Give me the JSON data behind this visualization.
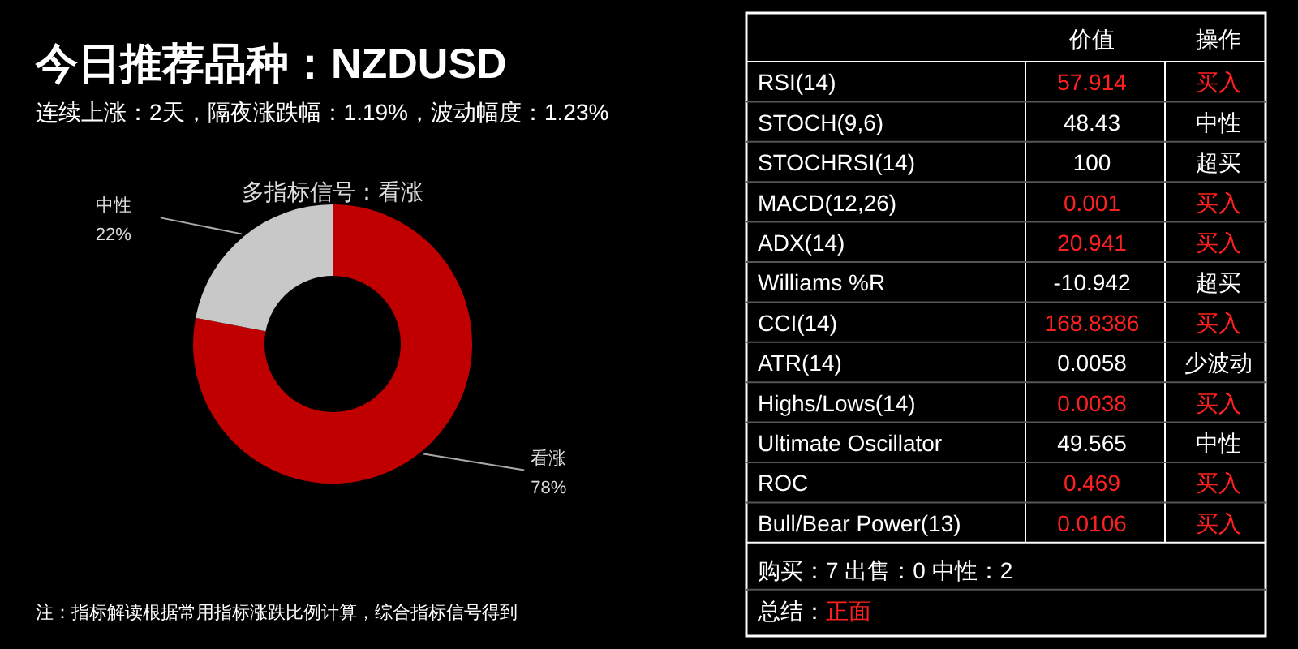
{
  "chart_data": [
    {
      "type": "donut",
      "title": "今日推荐品种：NZDUSD",
      "subtitle": "连续上涨：2天，隔夜涨跌幅：1.19%，波动幅度：1.23%",
      "categories": [
        "看涨",
        "中性"
      ],
      "values": [
        78,
        22
      ],
      "colors": [
        "#c00000",
        "#c8c8c8"
      ],
      "value_labels": [
        "78%",
        "22%"
      ],
      "annotations": [
        "多指标信号：看涨",
        "注：指标解读根据常用指标涨跌比例计算，综合指标信号得到"
      ]
    },
    {
      "type": "other",
      "categories": [
        "价值",
        "操作"
      ],
      "y_categories": [
        "RSI(14)",
        "STOCH(9,6)",
        "STOCHRSI(14)",
        "MACD(12,26)",
        "ADX(14)",
        "Williams %R",
        "CCI(14)",
        "ATR(14)",
        "Highs/Lows(14)",
        "Ultimate Oscillator",
        "ROC",
        "Bull/Bear Power(13)"
      ],
      "cell_labels": [
        [
          "57.914",
          "买入"
        ],
        [
          "48.43",
          "中性"
        ],
        [
          "100",
          "超买"
        ],
        [
          "0.001",
          "买入"
        ],
        [
          "20.941",
          "买入"
        ],
        [
          "-10.942",
          "超买"
        ],
        [
          "168.8386",
          "买入"
        ],
        [
          "0.0058",
          "少波动"
        ],
        [
          "0.0038",
          "买入"
        ],
        [
          "49.565",
          "中性"
        ],
        [
          "0.469",
          "买入"
        ],
        [
          "0.0106",
          "买入"
        ]
      ],
      "colors": [
        "#ff2020",
        "#ffffff",
        "#ffffff",
        "#ff2020",
        "#ff2020",
        "#ffffff",
        "#ff2020",
        "#ffffff",
        "#ff2020",
        "#ffffff",
        "#ff2020",
        "#ff2020"
      ],
      "annotations": [
        "购买：7 出售：0 中性：2",
        "总结：正面"
      ]
    }
  ]
}
